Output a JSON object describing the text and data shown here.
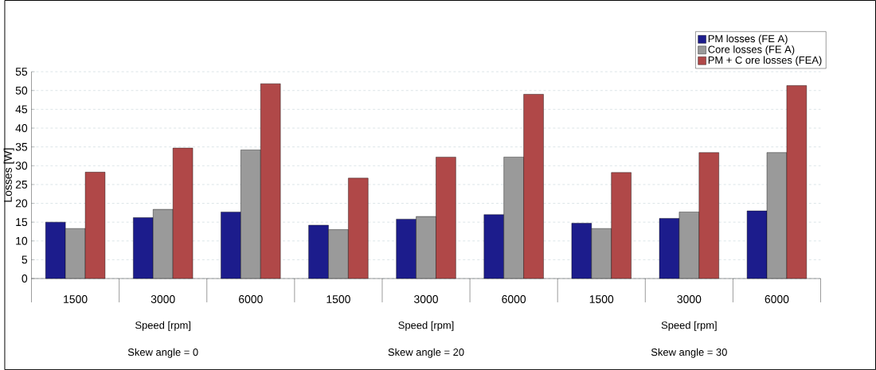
{
  "chart_data": {
    "type": "bar",
    "ylabel": "Losses [W]",
    "categories": [
      "1500",
      "3000",
      "6000",
      "1500",
      "3000",
      "6000",
      "1500",
      "3000",
      "6000"
    ],
    "series": [
      {
        "name": "PM losses (FE A)",
        "color": "#1c1c8c",
        "values": [
          15,
          16.2,
          17.7,
          14.2,
          15.8,
          17,
          14.7,
          16,
          18
        ]
      },
      {
        "name": "Core losses (FE A)",
        "color": "#9a9a9a",
        "values": [
          13.3,
          18.4,
          34.2,
          13,
          16.5,
          32.3,
          13.3,
          17.7,
          33.5
        ]
      },
      {
        "name": "PM + C ore losses (FEA)",
        "color": "#b04848",
        "values": [
          28.3,
          34.7,
          51.8,
          26.7,
          32.3,
          49,
          28.2,
          33.5,
          51.3
        ]
      }
    ],
    "ylim": [
      0,
      55
    ],
    "yticks": [
      0,
      5,
      10,
      15,
      20,
      25,
      30,
      35,
      40,
      45,
      50,
      55
    ],
    "grid": "y",
    "legend": "top right",
    "annotations": [
      "Speed [rpm]",
      "Speed [rpm]",
      "Speed [rpm]",
      "Skew angle = 0",
      "Skew angle = 20",
      "Skew angle = 30"
    ]
  }
}
